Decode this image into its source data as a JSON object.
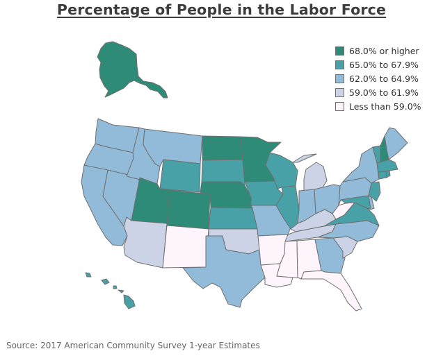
{
  "title": "Percentage of People in the Labor Force",
  "source": "Source: 2017 American Community Survey 1-year Estimates",
  "colors": {
    "c68": "#2e8b77",
    "c65": "#48a1a6",
    "c62": "#91bbd8",
    "c59": "#ccd3e6",
    "lt59": "#fdf5fb"
  },
  "legend": [
    {
      "key": "c68",
      "label": "68.0% or higher"
    },
    {
      "key": "c65",
      "label": "65.0% to 67.9%"
    },
    {
      "key": "c62",
      "label": "62.0% to 64.9%"
    },
    {
      "key": "c59",
      "label": "59.0% to 61.9%"
    },
    {
      "key": "lt59",
      "label": "Less than 59.0%"
    }
  ],
  "states": {
    "alaska": "c68",
    "hawaii": "c65",
    "washington": "c62",
    "oregon": "c62",
    "california": "c62",
    "nevada": "c62",
    "idaho": "c62",
    "montana": "c62",
    "wyoming": "c65",
    "utah": "c68",
    "arizona": "c59",
    "colorado": "c68",
    "new-mexico": "lt59",
    "north-dakota": "c68",
    "south-dakota": "c65",
    "nebraska": "c68",
    "kansas": "c65",
    "oklahoma": "c59",
    "texas": "c62",
    "minnesota": "c68",
    "iowa": "c65",
    "missouri": "c62",
    "arkansas": "lt59",
    "louisiana": "lt59",
    "wisconsin": "c65",
    "illinois": "c65",
    "michigan": "c59",
    "indiana": "c62",
    "ohio": "c62",
    "kentucky": "c59",
    "tennessee": "c59",
    "mississippi": "lt59",
    "alabama": "lt59",
    "georgia": "c62",
    "florida": "lt59",
    "south-carolina": "c59",
    "north-carolina": "c62",
    "virginia": "c65",
    "west-virginia": "lt59",
    "pennsylvania": "c62",
    "new-york": "c62",
    "vermont": "c65",
    "new-hampshire": "c68",
    "maine": "c62",
    "massachusetts": "c65",
    "connecticut": "c65",
    "rhode-island": "c65",
    "new-jersey": "c65",
    "delaware": "c62",
    "maryland": "c65"
  }
}
